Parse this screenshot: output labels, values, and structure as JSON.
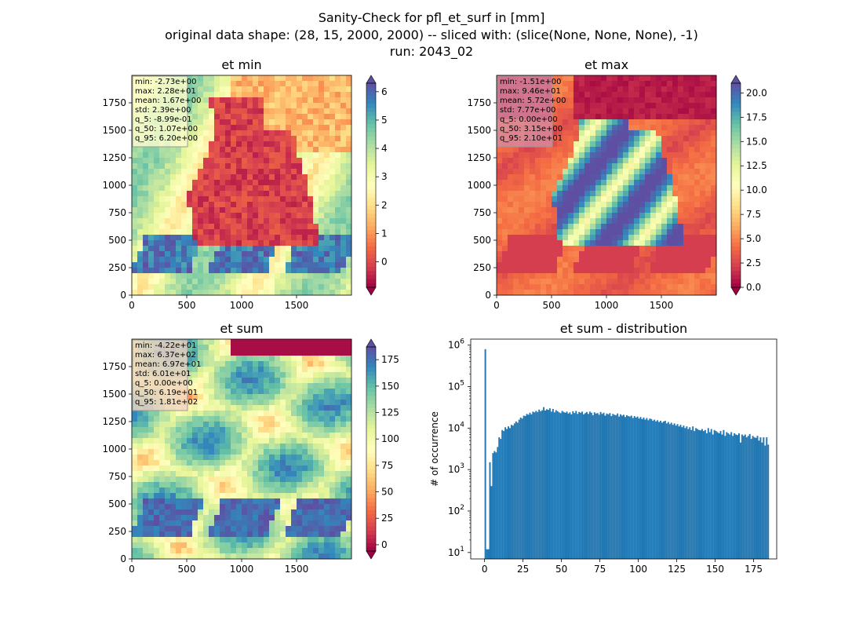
{
  "figure": {
    "suptitle_lines": [
      "Sanity-Check for pfl_et_surf in [mm]",
      "original data shape: (28, 15, 2000, 2000) -- sliced with: (slice(None, None, None), -1)",
      "run: 2043_02"
    ]
  },
  "chart_data": [
    {
      "type": "heatmap",
      "title": "et min",
      "colormap": "Spectral",
      "colormap_stops": [
        "#9e0142",
        "#d53e4f",
        "#f46d43",
        "#fdae61",
        "#fee08b",
        "#ffffbf",
        "#e6f598",
        "#abdda4",
        "#66c2a5",
        "#3288bd",
        "#5e4fa2"
      ],
      "xlim": [
        0,
        2000
      ],
      "ylim": [
        0,
        2000
      ],
      "xticks": [
        "0",
        "500",
        "1000",
        "1500"
      ],
      "yticks": [
        "0",
        "250",
        "500",
        "750",
        "1000",
        "1250",
        "1500",
        "1750"
      ],
      "colorbar": {
        "range": [
          -0.9,
          6.3
        ],
        "ticks": [
          "0",
          "1",
          "2",
          "3",
          "4",
          "5",
          "6"
        ],
        "extend": "both"
      },
      "stats": [
        "min: -2.73e+00",
        "max: 2.28e+01",
        "mean: 1.67e+00",
        "std: 2.39e+00",
        "q_5: -8.99e-01",
        "q_50: 1.07e+00",
        "q_95: 6.20e+00"
      ],
      "stats_box_color": "#ffffcc"
    },
    {
      "type": "heatmap",
      "title": "et max",
      "colormap": "Spectral",
      "colormap_stops": [
        "#9e0142",
        "#d53e4f",
        "#f46d43",
        "#fdae61",
        "#fee08b",
        "#ffffbf",
        "#e6f598",
        "#abdda4",
        "#66c2a5",
        "#3288bd",
        "#5e4fa2"
      ],
      "xlim": [
        0,
        2000
      ],
      "ylim": [
        0,
        2000
      ],
      "xticks": [
        "0",
        "500",
        "1000",
        "1500"
      ],
      "yticks": [
        "0",
        "250",
        "500",
        "750",
        "1000",
        "1250",
        "1500",
        "1750"
      ],
      "colorbar": {
        "range": [
          0,
          21
        ],
        "ticks": [
          "0.0",
          "2.5",
          "5.0",
          "7.5",
          "10.0",
          "12.5",
          "15.0",
          "17.5",
          "20.0"
        ],
        "extend": "both"
      },
      "stats": [
        "min: -1.51e+00",
        "max: 9.46e+01",
        "mean: 5.72e+00",
        "std: 7.77e+00",
        "q_5: 0.00e+00",
        "q_50: 3.15e+00",
        "q_95: 2.10e+01"
      ],
      "stats_box_color": "#d88aa0"
    },
    {
      "type": "heatmap",
      "title": "et sum",
      "colormap": "Spectral",
      "colormap_stops": [
        "#9e0142",
        "#d53e4f",
        "#f46d43",
        "#fdae61",
        "#fee08b",
        "#ffffbf",
        "#e6f598",
        "#abdda4",
        "#66c2a5",
        "#3288bd",
        "#5e4fa2"
      ],
      "xlim": [
        0,
        2000
      ],
      "ylim": [
        0,
        2000
      ],
      "xticks": [
        "0",
        "500",
        "1000",
        "1500"
      ],
      "yticks": [
        "0",
        "250",
        "500",
        "750",
        "1000",
        "1250",
        "1500",
        "1750"
      ],
      "colorbar": {
        "range": [
          -6,
          187
        ],
        "ticks": [
          "0",
          "25",
          "50",
          "75",
          "100",
          "125",
          "150",
          "175"
        ],
        "extend": "both"
      },
      "stats": [
        "min: -4.22e+01",
        "max: 6.37e+02",
        "mean: 6.97e+01",
        "std: 6.01e+01",
        "q_5: 0.00e+00",
        "q_50: 6.19e+01",
        "q_95: 1.81e+02"
      ],
      "stats_box_color": "#f2d4c0"
    },
    {
      "type": "bar",
      "title": "et sum - distribution",
      "ylabel": "# of occurrence",
      "xlabel": "",
      "yscale": "log",
      "xlim": [
        -9,
        190
      ],
      "ylim": [
        7,
        1400000
      ],
      "xticks": [
        "0",
        "25",
        "50",
        "75",
        "100",
        "125",
        "150",
        "175"
      ],
      "yticks": [
        "10^1",
        "10^2",
        "10^3",
        "10^4",
        "10^5",
        "10^6"
      ],
      "bar_color": "#1f77b4",
      "bin_width": 1,
      "bin_start": 0,
      "counts": [
        800000,
        12,
        12,
        1500,
        400,
        2500,
        2800,
        2600,
        3500,
        6000,
        5500,
        9000,
        8500,
        10500,
        9500,
        11000,
        10000,
        12000,
        11500,
        13000,
        14500,
        13500,
        16000,
        18000,
        17000,
        20000,
        19500,
        22000,
        21000,
        23500,
        21500,
        25000,
        24000,
        26000,
        24500,
        28000,
        25500,
        27000,
        32000,
        26500,
        28500,
        27500,
        30000,
        25000,
        29000,
        24000,
        27000,
        25500,
        24000,
        23000,
        26000,
        24500,
        23500,
        25000,
        22500,
        24000,
        21500,
        25500,
        23000,
        26000,
        22000,
        24500,
        23500,
        25000,
        21500,
        23000,
        24500,
        22000,
        25000,
        23500,
        20500,
        24000,
        22500,
        23000,
        21000,
        24500,
        22000,
        23500,
        20000,
        22500,
        21500,
        23000,
        19500,
        22000,
        21000,
        20500,
        22500,
        19000,
        21500,
        20000,
        21000,
        18500,
        20500,
        19500,
        19000,
        20000,
        17500,
        19500,
        18000,
        19000,
        17000,
        18500,
        16500,
        18000,
        16000,
        17500,
        15500,
        17000,
        16500,
        15000,
        16000,
        14500,
        15500,
        14000,
        15000,
        13500,
        14500,
        15000,
        13000,
        14000,
        12500,
        13500,
        12000,
        13000,
        11500,
        12500,
        11000,
        12000,
        10500,
        11500,
        10000,
        11000,
        9500,
        10500,
        9000,
        11000,
        8500,
        10000,
        9500,
        9000,
        8800,
        9500,
        8500,
        9000,
        7500,
        10000,
        8000,
        9500,
        7000,
        9000,
        8500,
        8000,
        7500,
        8500,
        7000,
        9000,
        6500,
        8000,
        7500,
        7000,
        8000,
        6500,
        7500,
        7000,
        6800,
        7500,
        4500,
        7000,
        6500,
        7000,
        6000,
        6500,
        7200,
        5500,
        6500,
        6000,
        5800,
        6500,
        5000,
        6000,
        4500,
        6000,
        3800,
        6000,
        4000
      ]
    }
  ]
}
